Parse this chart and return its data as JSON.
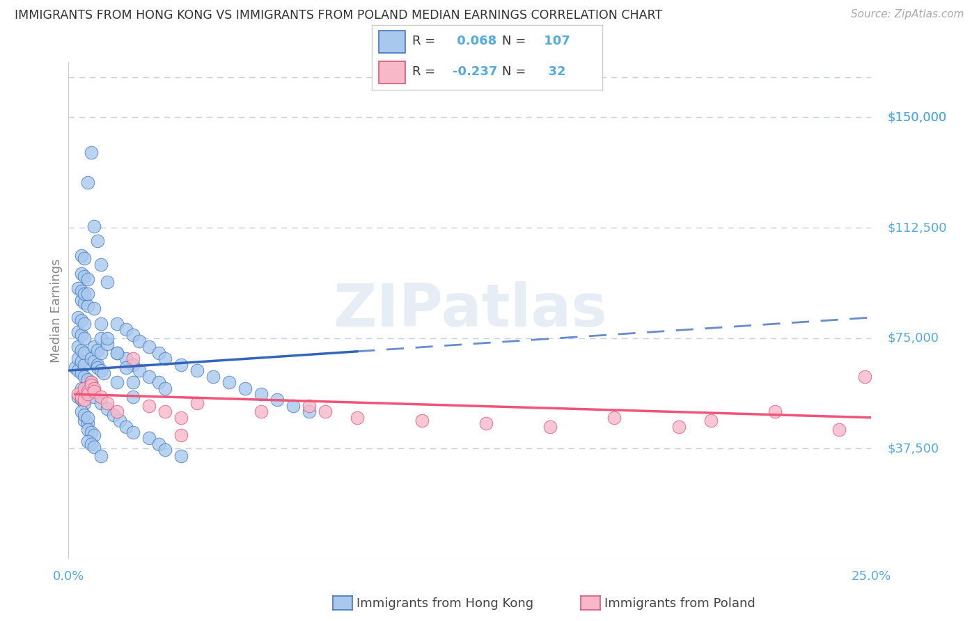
{
  "title": "IMMIGRANTS FROM HONG KONG VS IMMIGRANTS FROM POLAND MEDIAN EARNINGS CORRELATION CHART",
  "source": "Source: ZipAtlas.com",
  "ylabel": "Median Earnings",
  "xlim": [
    0.0,
    0.25
  ],
  "ylim": [
    0,
    168750
  ],
  "ytick_vals": [
    37500,
    75000,
    112500,
    150000
  ],
  "ytick_labels": [
    "$37,500",
    "$75,000",
    "$112,500",
    "$150,000"
  ],
  "xtick_vals": [
    0.0,
    0.05,
    0.1,
    0.15,
    0.2,
    0.25
  ],
  "xtick_labels": [
    "0.0%",
    "",
    "",
    "",
    "",
    "25.0%"
  ],
  "hk_R": 0.068,
  "hk_N": 107,
  "poland_R": -0.237,
  "poland_N": 32,
  "hk_fill_color": "#a8c8ee",
  "hk_edge_color": "#4477bb",
  "poland_fill_color": "#f8b8c8",
  "poland_edge_color": "#dd5577",
  "hk_line_color": "#3366bb",
  "poland_line_color": "#ee5577",
  "grid_color": "#c0d0e0",
  "tick_label_color": "#55aadd",
  "title_color": "#333333",
  "source_color": "#aaaaaa",
  "watermark_color": "#c8d8e8",
  "bg_color": "#ffffff",
  "hk_scatter_x": [
    0.002,
    0.003,
    0.004,
    0.003,
    0.004,
    0.005,
    0.003,
    0.004,
    0.005,
    0.003,
    0.004,
    0.005,
    0.003,
    0.004,
    0.005,
    0.004,
    0.005,
    0.006,
    0.003,
    0.004,
    0.005,
    0.004,
    0.005,
    0.006,
    0.004,
    0.005,
    0.003,
    0.004,
    0.005,
    0.004,
    0.005,
    0.006,
    0.005,
    0.006,
    0.007,
    0.005,
    0.006,
    0.004,
    0.005,
    0.006,
    0.006,
    0.007,
    0.008,
    0.006,
    0.007,
    0.008,
    0.007,
    0.008,
    0.009,
    0.008,
    0.009,
    0.01,
    0.009,
    0.01,
    0.011,
    0.01,
    0.012,
    0.015,
    0.018,
    0.02,
    0.022,
    0.025,
    0.028,
    0.03,
    0.015,
    0.018,
    0.02,
    0.022,
    0.025,
    0.028,
    0.03,
    0.035,
    0.04,
    0.045,
    0.05,
    0.055,
    0.06,
    0.065,
    0.07,
    0.075,
    0.008,
    0.01,
    0.012,
    0.014,
    0.016,
    0.018,
    0.02,
    0.025,
    0.028,
    0.03,
    0.035,
    0.006,
    0.007,
    0.008,
    0.009,
    0.01,
    0.012,
    0.006,
    0.008,
    0.01,
    0.012,
    0.015,
    0.018,
    0.02,
    0.01,
    0.015,
    0.02
  ],
  "hk_scatter_y": [
    65000,
    64000,
    63000,
    68000,
    67000,
    66000,
    72000,
    71000,
    70000,
    77000,
    76000,
    75000,
    82000,
    81000,
    80000,
    88000,
    87000,
    86000,
    92000,
    91000,
    90000,
    97000,
    96000,
    95000,
    103000,
    102000,
    55000,
    54000,
    53000,
    58000,
    57000,
    56000,
    62000,
    61000,
    60000,
    47000,
    46000,
    50000,
    49000,
    48000,
    44000,
    43000,
    42000,
    40000,
    39000,
    38000,
    68000,
    67000,
    66000,
    72000,
    71000,
    70000,
    65000,
    64000,
    63000,
    75000,
    73000,
    70000,
    68000,
    66000,
    64000,
    62000,
    60000,
    58000,
    80000,
    78000,
    76000,
    74000,
    72000,
    70000,
    68000,
    66000,
    64000,
    62000,
    60000,
    58000,
    56000,
    54000,
    52000,
    50000,
    55000,
    53000,
    51000,
    49000,
    47000,
    45000,
    43000,
    41000,
    39000,
    37000,
    35000,
    128000,
    138000,
    113000,
    108000,
    100000,
    94000,
    90000,
    85000,
    80000,
    75000,
    70000,
    65000,
    60000,
    35000,
    60000,
    55000
  ],
  "poland_scatter_x": [
    0.003,
    0.004,
    0.005,
    0.005,
    0.006,
    0.006,
    0.007,
    0.007,
    0.008,
    0.008,
    0.01,
    0.012,
    0.015,
    0.02,
    0.025,
    0.03,
    0.035,
    0.04,
    0.06,
    0.075,
    0.08,
    0.09,
    0.11,
    0.13,
    0.15,
    0.17,
    0.19,
    0.2,
    0.22,
    0.24,
    0.248,
    0.035
  ],
  "poland_scatter_y": [
    56000,
    55000,
    54000,
    58000,
    57000,
    56000,
    60000,
    59000,
    58000,
    57000,
    55000,
    53000,
    50000,
    68000,
    52000,
    50000,
    48000,
    53000,
    50000,
    52000,
    50000,
    48000,
    47000,
    46000,
    45000,
    48000,
    45000,
    47000,
    50000,
    44000,
    62000,
    42000
  ],
  "hk_line_intercept": 64000,
  "hk_line_slope": 72000,
  "poland_line_intercept": 56000,
  "poland_line_slope": -32000
}
